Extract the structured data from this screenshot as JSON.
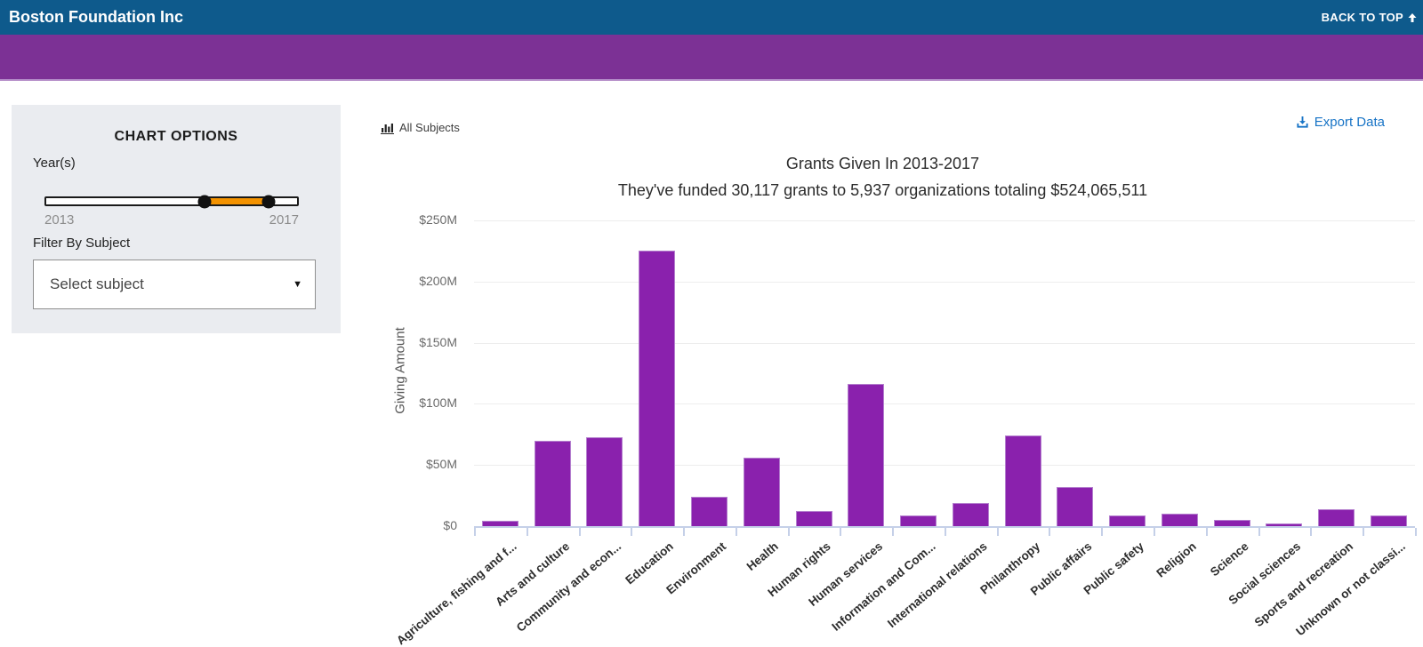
{
  "header": {
    "title": "Boston Foundation Inc",
    "back_to_top": "BACK TO TOP"
  },
  "options_panel": {
    "title": "CHART OPTIONS",
    "years_label": "Year(s)",
    "slider": {
      "min_label": "2013",
      "max_label": "2017",
      "selected_start_pct": 63,
      "selected_end_pct": 88,
      "range_color": "#f39200"
    },
    "filter_label": "Filter By Subject",
    "subject_dropdown": {
      "value": "Select subject"
    }
  },
  "toolbar": {
    "all_subjects_label": "All Subjects",
    "export_label": "Export Data"
  },
  "chart_data": {
    "type": "bar",
    "title": "Grants Given In 2013-2017",
    "subtitle": "They've funded 30,117 grants to 5,937 organizations totaling $524,065,511",
    "ylabel": "Giving Amount",
    "xlabel": "",
    "ylim": [
      0,
      250
    ],
    "grid": true,
    "legend_position": "top-left",
    "y_ticks": [
      "$0",
      "$50M",
      "$100M",
      "$150M",
      "$200M",
      "$250M"
    ],
    "categories": [
      "Agriculture, fishing and f...",
      "Arts and culture",
      "Community and econ...",
      "Education",
      "Environment",
      "Health",
      "Human rights",
      "Human services",
      "Information and Com...",
      "International relations",
      "Philanthropy",
      "Public affairs",
      "Public safety",
      "Religion",
      "Science",
      "Social sciences",
      "Sports and recreation",
      "Unknown or not classi..."
    ],
    "values_millions": [
      4,
      70,
      73,
      225,
      24,
      56,
      12,
      116,
      9,
      19,
      74,
      32,
      9,
      10,
      5,
      2,
      14,
      9
    ],
    "bar_color": "#8a21ad",
    "bar_border_color": "#b47fce",
    "axis_color": "#c5d0e8",
    "grid_color": "#ededed"
  },
  "colors": {
    "header_bg": "#0e5a8c",
    "banner_bg": "#7c3195",
    "panel_bg": "#eaecf0",
    "link_blue": "#1874c6",
    "slider_orange": "#f39200"
  }
}
